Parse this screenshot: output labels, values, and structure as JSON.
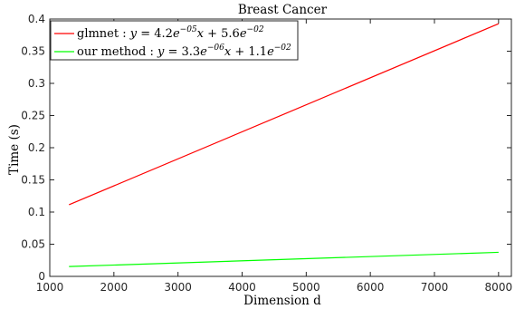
{
  "chart_data": {
    "type": "line",
    "title": "Breast Cancer",
    "xlabel": "Dimension d",
    "ylabel": "Time (s)",
    "xlim": [
      1000,
      8200
    ],
    "ylim": [
      0,
      0.4
    ],
    "xticks": [
      1000,
      2000,
      3000,
      4000,
      5000,
      6000,
      7000,
      8000
    ],
    "yticks": [
      0,
      0.05,
      0.1,
      0.15,
      0.2,
      0.25,
      0.3,
      0.35,
      0.4
    ],
    "xtick_labels": [
      "1000",
      "2000",
      "3000",
      "4000",
      "5000",
      "6000",
      "7000",
      "8000"
    ],
    "ytick_labels": [
      "0",
      "0.05",
      "0.1",
      "0.15",
      "0.2",
      "0.25",
      "0.3",
      "0.35",
      "0.4"
    ],
    "grid": false,
    "legend_position": "top-left",
    "series": [
      {
        "name": "glmnet",
        "legend": {
          "prefix": "glmnet : ",
          "coef": "4.2",
          "coef_exp": "−05",
          "intercept": "5.6",
          "intercept_exp": "−02"
        },
        "color": "#ff0000",
        "x": [
          1300,
          8000
        ],
        "y": [
          0.1113,
          0.3927
        ]
      },
      {
        "name": "our method",
        "legend": {
          "prefix": "our method : ",
          "coef": "3.3",
          "coef_exp": "−06",
          "intercept": "1.1",
          "intercept_exp": "−02"
        },
        "color": "#00ff00",
        "x": [
          1300,
          8000
        ],
        "y": [
          0.0153,
          0.0374
        ]
      }
    ]
  }
}
